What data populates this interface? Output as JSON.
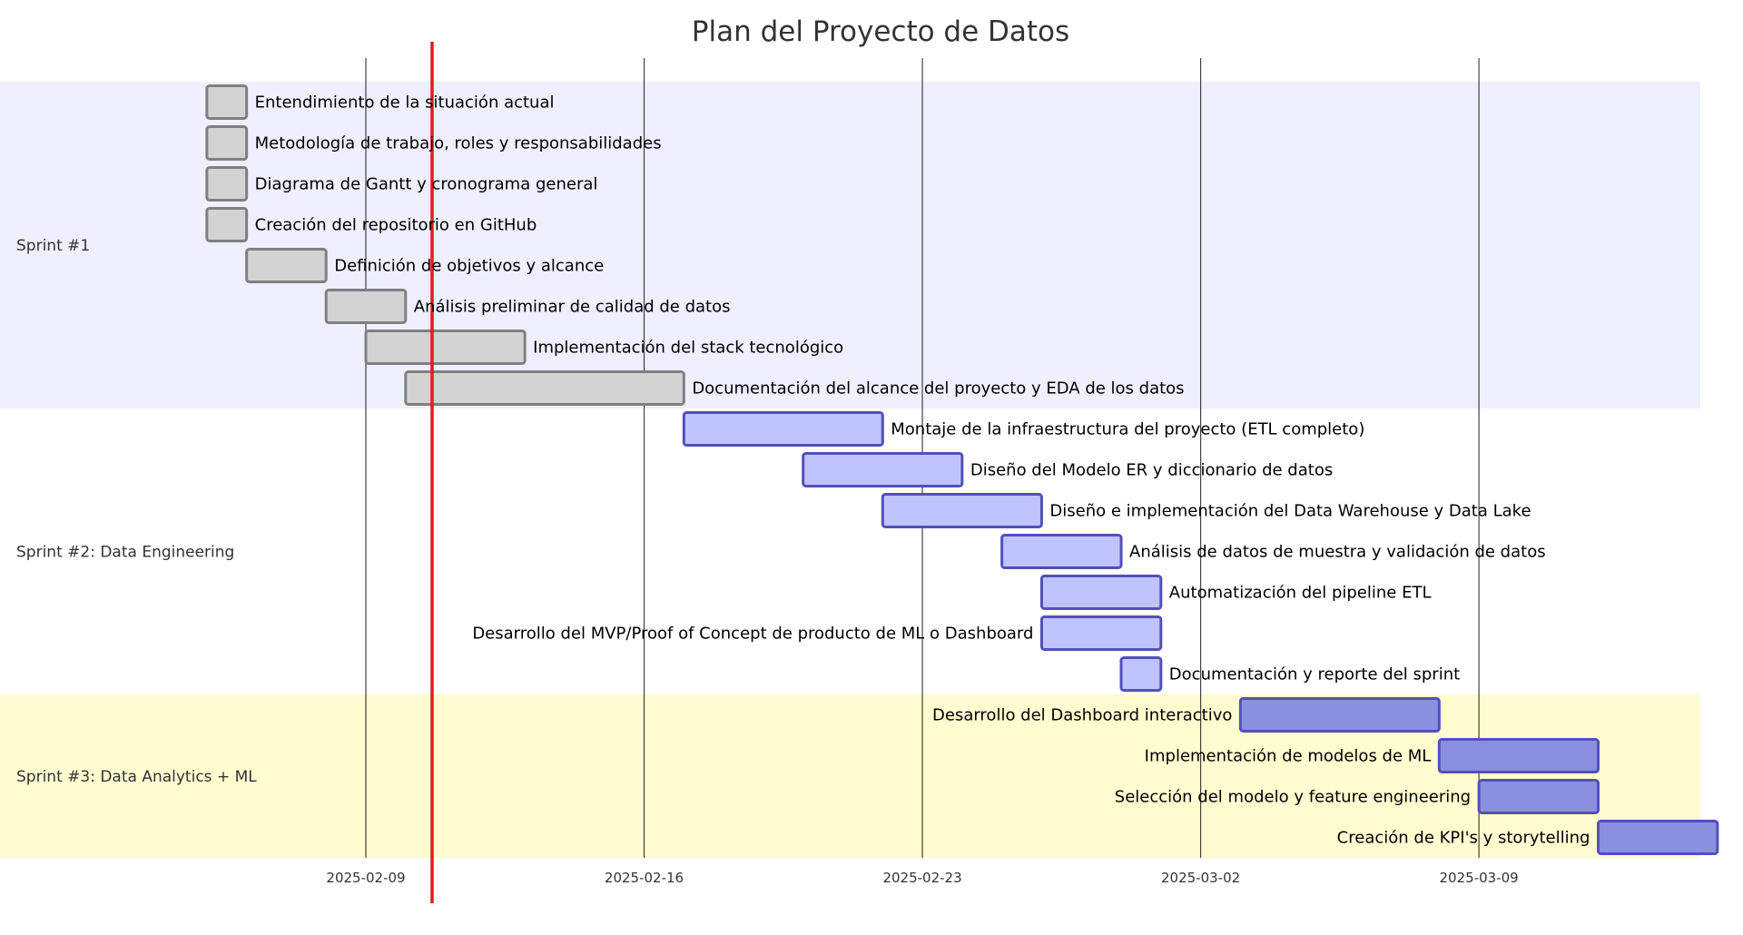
{
  "chart_data": {
    "type": "gantt",
    "title": "Plan del Proyecto de Datos",
    "x_ticks": [
      "2025-02-09",
      "2025-02-16",
      "2025-02-23",
      "2025-03-02",
      "2025-03-09"
    ],
    "xlim": [
      "2025-02-03",
      "2025-03-15"
    ],
    "today_marker": "2025-02-10 16:00",
    "today_marker_color": "#e31a1c",
    "grid": "vertical",
    "sections": [
      {
        "name": "Sprint #1",
        "band_color": "#efefff",
        "bar_fill": "#d3d3d3",
        "bar_stroke": "#808080",
        "tasks": [
          {
            "name": "Entendimiento de la situación actual",
            "start": "2025-02-05",
            "end": "2025-02-06"
          },
          {
            "name": "Metodología de trabajo, roles y responsabilidades",
            "start": "2025-02-05",
            "end": "2025-02-06"
          },
          {
            "name": "Diagrama de Gantt y cronograma general",
            "start": "2025-02-05",
            "end": "2025-02-06"
          },
          {
            "name": "Creación del repositorio en GitHub",
            "start": "2025-02-05",
            "end": "2025-02-06"
          },
          {
            "name": "Definición de objetivos y alcance",
            "start": "2025-02-06",
            "end": "2025-02-08"
          },
          {
            "name": "Análisis preliminar de calidad de datos",
            "start": "2025-02-08",
            "end": "2025-02-10"
          },
          {
            "name": "Implementación del stack tecnológico",
            "start": "2025-02-09",
            "end": "2025-02-13"
          },
          {
            "name": "Documentación del alcance del proyecto y EDA de los datos",
            "start": "2025-02-10",
            "end": "2025-02-17"
          }
        ]
      },
      {
        "name": "Sprint #2: Data Engineering",
        "band_color": "#ffffff",
        "bar_fill": "#bfc4ff",
        "bar_stroke": "#534fbc",
        "tasks": [
          {
            "name": "Montaje de la infraestructura del proyecto (ETL completo)",
            "start": "2025-02-17",
            "end": "2025-02-22"
          },
          {
            "name": "Diseño del Modelo ER y diccionario de datos",
            "start": "2025-02-20",
            "end": "2025-02-24"
          },
          {
            "name": "Diseño e implementación del Data Warehouse y Data Lake",
            "start": "2025-02-22",
            "end": "2025-02-26"
          },
          {
            "name": "Análisis de datos de muestra y validación de datos",
            "start": "2025-02-25",
            "end": "2025-02-28"
          },
          {
            "name": "Automatización del pipeline ETL",
            "start": "2025-02-26",
            "end": "2025-03-01"
          },
          {
            "name": "Desarrollo del MVP/Proof of Concept de producto de ML o Dashboard",
            "start": "2025-02-26",
            "end": "2025-03-01"
          },
          {
            "name": "Documentación y reporte del sprint",
            "start": "2025-02-28",
            "end": "2025-03-01"
          }
        ]
      },
      {
        "name": "Sprint #3: Data Analytics + ML",
        "band_color": "#fffcd0",
        "bar_fill": "#8a90dd",
        "bar_stroke": "#534fbc",
        "tasks": [
          {
            "name": "Desarrollo del Dashboard interactivo",
            "start": "2025-03-03",
            "end": "2025-03-08"
          },
          {
            "name": "Implementación de modelos de ML",
            "start": "2025-03-08",
            "end": "2025-03-12"
          },
          {
            "name": "Selección del modelo y feature engineering",
            "start": "2025-03-09",
            "end": "2025-03-12"
          },
          {
            "name": "Creación de KPI's y storytelling",
            "start": "2025-03-12",
            "end": "2025-03-15"
          }
        ]
      }
    ]
  }
}
